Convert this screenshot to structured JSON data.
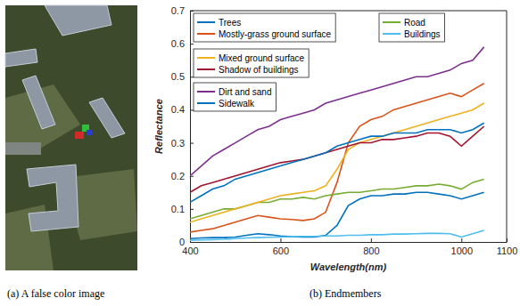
{
  "chart_data": {
    "type": "line",
    "x_label": "Wavelength(nm)",
    "y_label": "Reflectance",
    "x": [
      400,
      425,
      450,
      475,
      500,
      525,
      550,
      575,
      600,
      625,
      650,
      675,
      700,
      725,
      750,
      775,
      800,
      825,
      850,
      875,
      900,
      925,
      950,
      975,
      1000,
      1025,
      1050
    ],
    "series": [
      {
        "name": "Trees",
        "color": "#0072bd",
        "values": [
          0.01,
          0.012,
          0.013,
          0.013,
          0.015,
          0.02,
          0.025,
          0.022,
          0.018,
          0.016,
          0.015,
          0.015,
          0.02,
          0.05,
          0.11,
          0.13,
          0.14,
          0.14,
          0.145,
          0.145,
          0.15,
          0.15,
          0.145,
          0.14,
          0.13,
          0.14,
          0.15
        ]
      },
      {
        "name": "Mostly-grass ground surface",
        "color": "#d95319",
        "values": [
          0.03,
          0.035,
          0.04,
          0.05,
          0.06,
          0.07,
          0.08,
          0.075,
          0.07,
          0.068,
          0.065,
          0.07,
          0.09,
          0.18,
          0.3,
          0.35,
          0.37,
          0.38,
          0.4,
          0.41,
          0.42,
          0.43,
          0.44,
          0.45,
          0.44,
          0.46,
          0.48
        ]
      },
      {
        "name": "Road",
        "color": "#77ac30",
        "values": [
          0.07,
          0.08,
          0.09,
          0.1,
          0.1,
          0.11,
          0.12,
          0.12,
          0.13,
          0.13,
          0.135,
          0.13,
          0.14,
          0.145,
          0.15,
          0.15,
          0.155,
          0.16,
          0.16,
          0.165,
          0.17,
          0.17,
          0.175,
          0.17,
          0.16,
          0.18,
          0.19
        ]
      },
      {
        "name": "Buildings",
        "color": "#4dbeee",
        "values": [
          0.005,
          0.006,
          0.007,
          0.008,
          0.01,
          0.012,
          0.013,
          0.014,
          0.015,
          0.016,
          0.017,
          0.017,
          0.018,
          0.018,
          0.02,
          0.02,
          0.022,
          0.022,
          0.024,
          0.024,
          0.025,
          0.026,
          0.026,
          0.025,
          0.015,
          0.025,
          0.035
        ]
      },
      {
        "name": "Mixed ground surface",
        "color": "#edb120",
        "values": [
          0.06,
          0.07,
          0.08,
          0.09,
          0.1,
          0.11,
          0.12,
          0.13,
          0.14,
          0.145,
          0.15,
          0.155,
          0.17,
          0.22,
          0.28,
          0.3,
          0.31,
          0.32,
          0.33,
          0.34,
          0.35,
          0.36,
          0.37,
          0.38,
          0.39,
          0.4,
          0.42
        ]
      },
      {
        "name": "Shadow of buildings",
        "color": "#a2142f",
        "values": [
          0.15,
          0.17,
          0.18,
          0.19,
          0.2,
          0.21,
          0.22,
          0.23,
          0.24,
          0.245,
          0.25,
          0.26,
          0.27,
          0.28,
          0.29,
          0.3,
          0.3,
          0.31,
          0.31,
          0.315,
          0.32,
          0.33,
          0.33,
          0.32,
          0.29,
          0.32,
          0.35
        ]
      },
      {
        "name": "Dirt and sand",
        "color": "#7e2f8e",
        "values": [
          0.2,
          0.23,
          0.26,
          0.28,
          0.3,
          0.32,
          0.34,
          0.35,
          0.37,
          0.38,
          0.39,
          0.4,
          0.42,
          0.43,
          0.44,
          0.45,
          0.46,
          0.47,
          0.48,
          0.49,
          0.5,
          0.5,
          0.51,
          0.52,
          0.54,
          0.55,
          0.59
        ]
      },
      {
        "name": "Sidewalk",
        "color": "#0072bd",
        "values": [
          0.12,
          0.14,
          0.16,
          0.17,
          0.19,
          0.2,
          0.21,
          0.22,
          0.23,
          0.24,
          0.25,
          0.26,
          0.27,
          0.29,
          0.3,
          0.31,
          0.32,
          0.32,
          0.33,
          0.33,
          0.33,
          0.34,
          0.34,
          0.34,
          0.33,
          0.34,
          0.36
        ]
      }
    ],
    "xlim": [
      400,
      1100
    ],
    "xticks": [
      400,
      600,
      800,
      1000,
      1100
    ],
    "ylim": [
      0,
      0.7
    ],
    "yticks": [
      0,
      0.1,
      0.2,
      0.3,
      0.4,
      0.5,
      0.6,
      0.7
    ],
    "legend": "upper left",
    "grid": false
  },
  "captions": [
    "(a) A false color image",
    "(b) Endmembers"
  ]
}
